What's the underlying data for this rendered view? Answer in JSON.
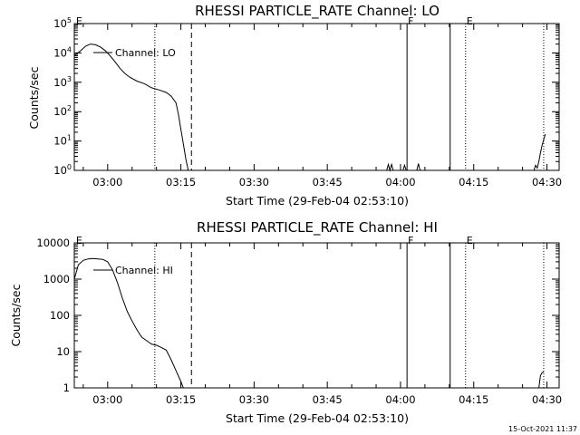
{
  "timestamp": "15-Oct-2021 11:37",
  "chart_data": [
    {
      "type": "line",
      "title": "RHESSI PARTICLE_RATE Channel: LO",
      "xlabel": "Start Time (29-Feb-04 02:53:10)",
      "ylabel": "Counts/sec",
      "legend": {
        "label": "Channel: LO",
        "placement": "top-left"
      },
      "yscale": "log",
      "ylim": [
        1,
        100000
      ],
      "xlim": [
        "02:53:10",
        "04:32:30"
      ],
      "xticks": [
        "03:00",
        "03:15",
        "03:30",
        "03:45",
        "04:00",
        "04:15",
        "04:30"
      ],
      "yticks": [
        {
          "base": "10",
          "exp": "0"
        },
        {
          "base": "10",
          "exp": "1"
        },
        {
          "base": "10",
          "exp": "2"
        },
        {
          "base": "10",
          "exp": "3"
        },
        {
          "base": "10",
          "exp": "4"
        },
        {
          "base": "10",
          "exp": "5"
        }
      ],
      "markers": [
        {
          "time": "02:53:20",
          "style": "none",
          "label": "E"
        },
        {
          "time": "03:09:40",
          "style": "dotted",
          "label": ""
        },
        {
          "time": "03:17:10",
          "style": "dashed",
          "label": ""
        },
        {
          "time": "04:01:20",
          "style": "solid",
          "label": "F"
        },
        {
          "time": "04:10:10",
          "style": "solid",
          "label": ""
        },
        {
          "time": "04:13:20",
          "style": "dotted",
          "label": "E"
        },
        {
          "time": "04:29:20",
          "style": "dotted",
          "label": ""
        }
      ],
      "series": [
        {
          "name": "Channel: LO",
          "segments": [
            {
              "t": [
                "02:53:10",
                "02:54:30",
                "02:55:30",
                "02:56:30",
                "02:57:30",
                "02:58:30",
                "02:59:30",
                "03:00:30",
                "03:01:30",
                "03:02:30",
                "03:03:30",
                "03:04:30",
                "03:06:00",
                "03:07:30",
                "03:09:00",
                "03:10:30",
                "03:12:00",
                "03:13:00",
                "03:14:00",
                "03:14:30",
                "03:15:00",
                "03:15:30",
                "03:16:00",
                "03:16:30"
              ],
              "v": [
                8000,
                12000,
                17000,
                20000,
                19000,
                16000,
                12000,
                8000,
                5000,
                3000,
                2000,
                1500,
                1100,
                900,
                650,
                550,
                450,
                340,
                200,
                80,
                25,
                8,
                2.5,
                1
              ]
            },
            {
              "t": [
                "03:57:10",
                "03:57:30",
                "03:57:50",
                "03:58:10",
                "03:58:30"
              ],
              "v": [
                1,
                1.6,
                1,
                1.6,
                1
              ]
            },
            {
              "t": [
                "04:00:30",
                "04:00:50",
                "04:01:10"
              ],
              "v": [
                1,
                1.5,
                1
              ]
            },
            {
              "t": [
                "04:03:20",
                "04:03:40",
                "04:04:00"
              ],
              "v": [
                1,
                1.7,
                1
              ]
            },
            {
              "t": [
                "04:27:20",
                "04:27:40",
                "04:28:00",
                "04:28:20",
                "04:28:40",
                "04:29:00",
                "04:29:20",
                "04:29:40"
              ],
              "v": [
                1,
                1.5,
                1.2,
                2,
                4,
                7,
                11,
                17
              ]
            }
          ]
        }
      ]
    },
    {
      "type": "line",
      "title": "RHESSI PARTICLE_RATE Channel: HI",
      "xlabel": "Start Time (29-Feb-04 02:53:10)",
      "ylabel": "Counts/sec",
      "legend": {
        "label": "Channel: HI",
        "placement": "top-left"
      },
      "yscale": "log",
      "ylim": [
        1,
        10000
      ],
      "xlim": [
        "02:53:10",
        "04:32:30"
      ],
      "xticks": [
        "03:00",
        "03:15",
        "03:30",
        "03:45",
        "04:00",
        "04:15",
        "04:30"
      ],
      "yticks": [
        {
          "base": "1",
          "exp": ""
        },
        {
          "base": "10",
          "exp": ""
        },
        {
          "base": "100",
          "exp": ""
        },
        {
          "base": "1000",
          "exp": ""
        },
        {
          "base": "10000",
          "exp": ""
        }
      ],
      "markers": [
        {
          "time": "02:53:20",
          "style": "none",
          "label": "E"
        },
        {
          "time": "03:09:40",
          "style": "dotted",
          "label": ""
        },
        {
          "time": "03:17:10",
          "style": "dashed",
          "label": ""
        },
        {
          "time": "04:01:20",
          "style": "solid",
          "label": "F"
        },
        {
          "time": "04:10:10",
          "style": "solid",
          "label": ""
        },
        {
          "time": "04:13:20",
          "style": "dotted",
          "label": "E"
        },
        {
          "time": "04:29:20",
          "style": "dotted",
          "label": ""
        }
      ],
      "series": [
        {
          "name": "Channel: HI",
          "segments": [
            {
              "t": [
                "02:53:10",
                "02:54:00",
                "02:55:00",
                "02:56:00",
                "02:57:00",
                "02:58:00",
                "02:59:00",
                "03:00:00",
                "03:01:00",
                "03:02:00",
                "03:03:00",
                "03:04:00",
                "03:05:00",
                "03:06:00",
                "03:07:00",
                "03:08:00",
                "03:09:00",
                "03:10:00",
                "03:11:00",
                "03:12:00",
                "03:13:00",
                "03:14:00",
                "03:15:00",
                "03:15:30"
              ],
              "v": [
                1000,
                2500,
                3300,
                3600,
                3700,
                3600,
                3500,
                3000,
                1800,
                800,
                300,
                130,
                70,
                40,
                25,
                20,
                16,
                15,
                13,
                11,
                6,
                3,
                1.5,
                1
              ]
            },
            {
              "t": [
                "04:28:20",
                "04:28:40",
                "04:29:00",
                "04:29:20"
              ],
              "v": [
                1,
                2.2,
                2.6,
                2.8
              ]
            }
          ]
        }
      ]
    }
  ]
}
